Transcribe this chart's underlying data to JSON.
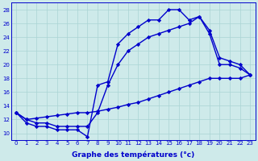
{
  "line1": [
    13,
    11.5,
    11,
    11,
    10.5,
    10.5,
    10.5,
    9.5,
    17,
    17.5,
    23,
    24.5,
    25.5,
    26.5,
    26.5,
    28,
    28,
    26.5,
    27,
    24.5,
    20,
    20,
    19.5,
    18.5
  ],
  "line2": [
    13,
    12.0,
    12.2,
    12.4,
    12.6,
    12.8,
    13.0,
    13.0,
    13.2,
    13.5,
    13.8,
    14.2,
    14.5,
    15.0,
    15.5,
    16.0,
    16.5,
    17.0,
    17.5,
    18.0,
    18.0,
    18.0,
    18.0,
    18.5
  ],
  "line3": [
    13,
    12,
    11.5,
    11.5,
    11,
    11,
    11,
    11,
    13,
    17,
    20,
    22,
    23,
    24,
    24.5,
    25,
    25.5,
    26,
    27,
    25,
    21,
    20.5,
    20,
    18.5
  ],
  "hours": [
    0,
    1,
    2,
    3,
    4,
    5,
    6,
    7,
    8,
    9,
    10,
    11,
    12,
    13,
    14,
    15,
    16,
    17,
    18,
    19,
    20,
    21,
    22,
    23
  ],
  "xlim": [
    -0.5,
    23.5
  ],
  "ylim": [
    9,
    29
  ],
  "yticks": [
    10,
    12,
    14,
    16,
    18,
    20,
    22,
    24,
    26,
    28
  ],
  "xticks": [
    0,
    1,
    2,
    3,
    4,
    5,
    6,
    7,
    8,
    9,
    10,
    11,
    12,
    13,
    14,
    15,
    16,
    17,
    18,
    19,
    20,
    21,
    22,
    23
  ],
  "xlabel": "Graphe des températures (°c)",
  "line_color": "#0000cc",
  "bg_color": "#ceeaea",
  "grid_color": "#aad4d4",
  "marker": "D",
  "marker_size": 2.2,
  "line_width": 1.0
}
